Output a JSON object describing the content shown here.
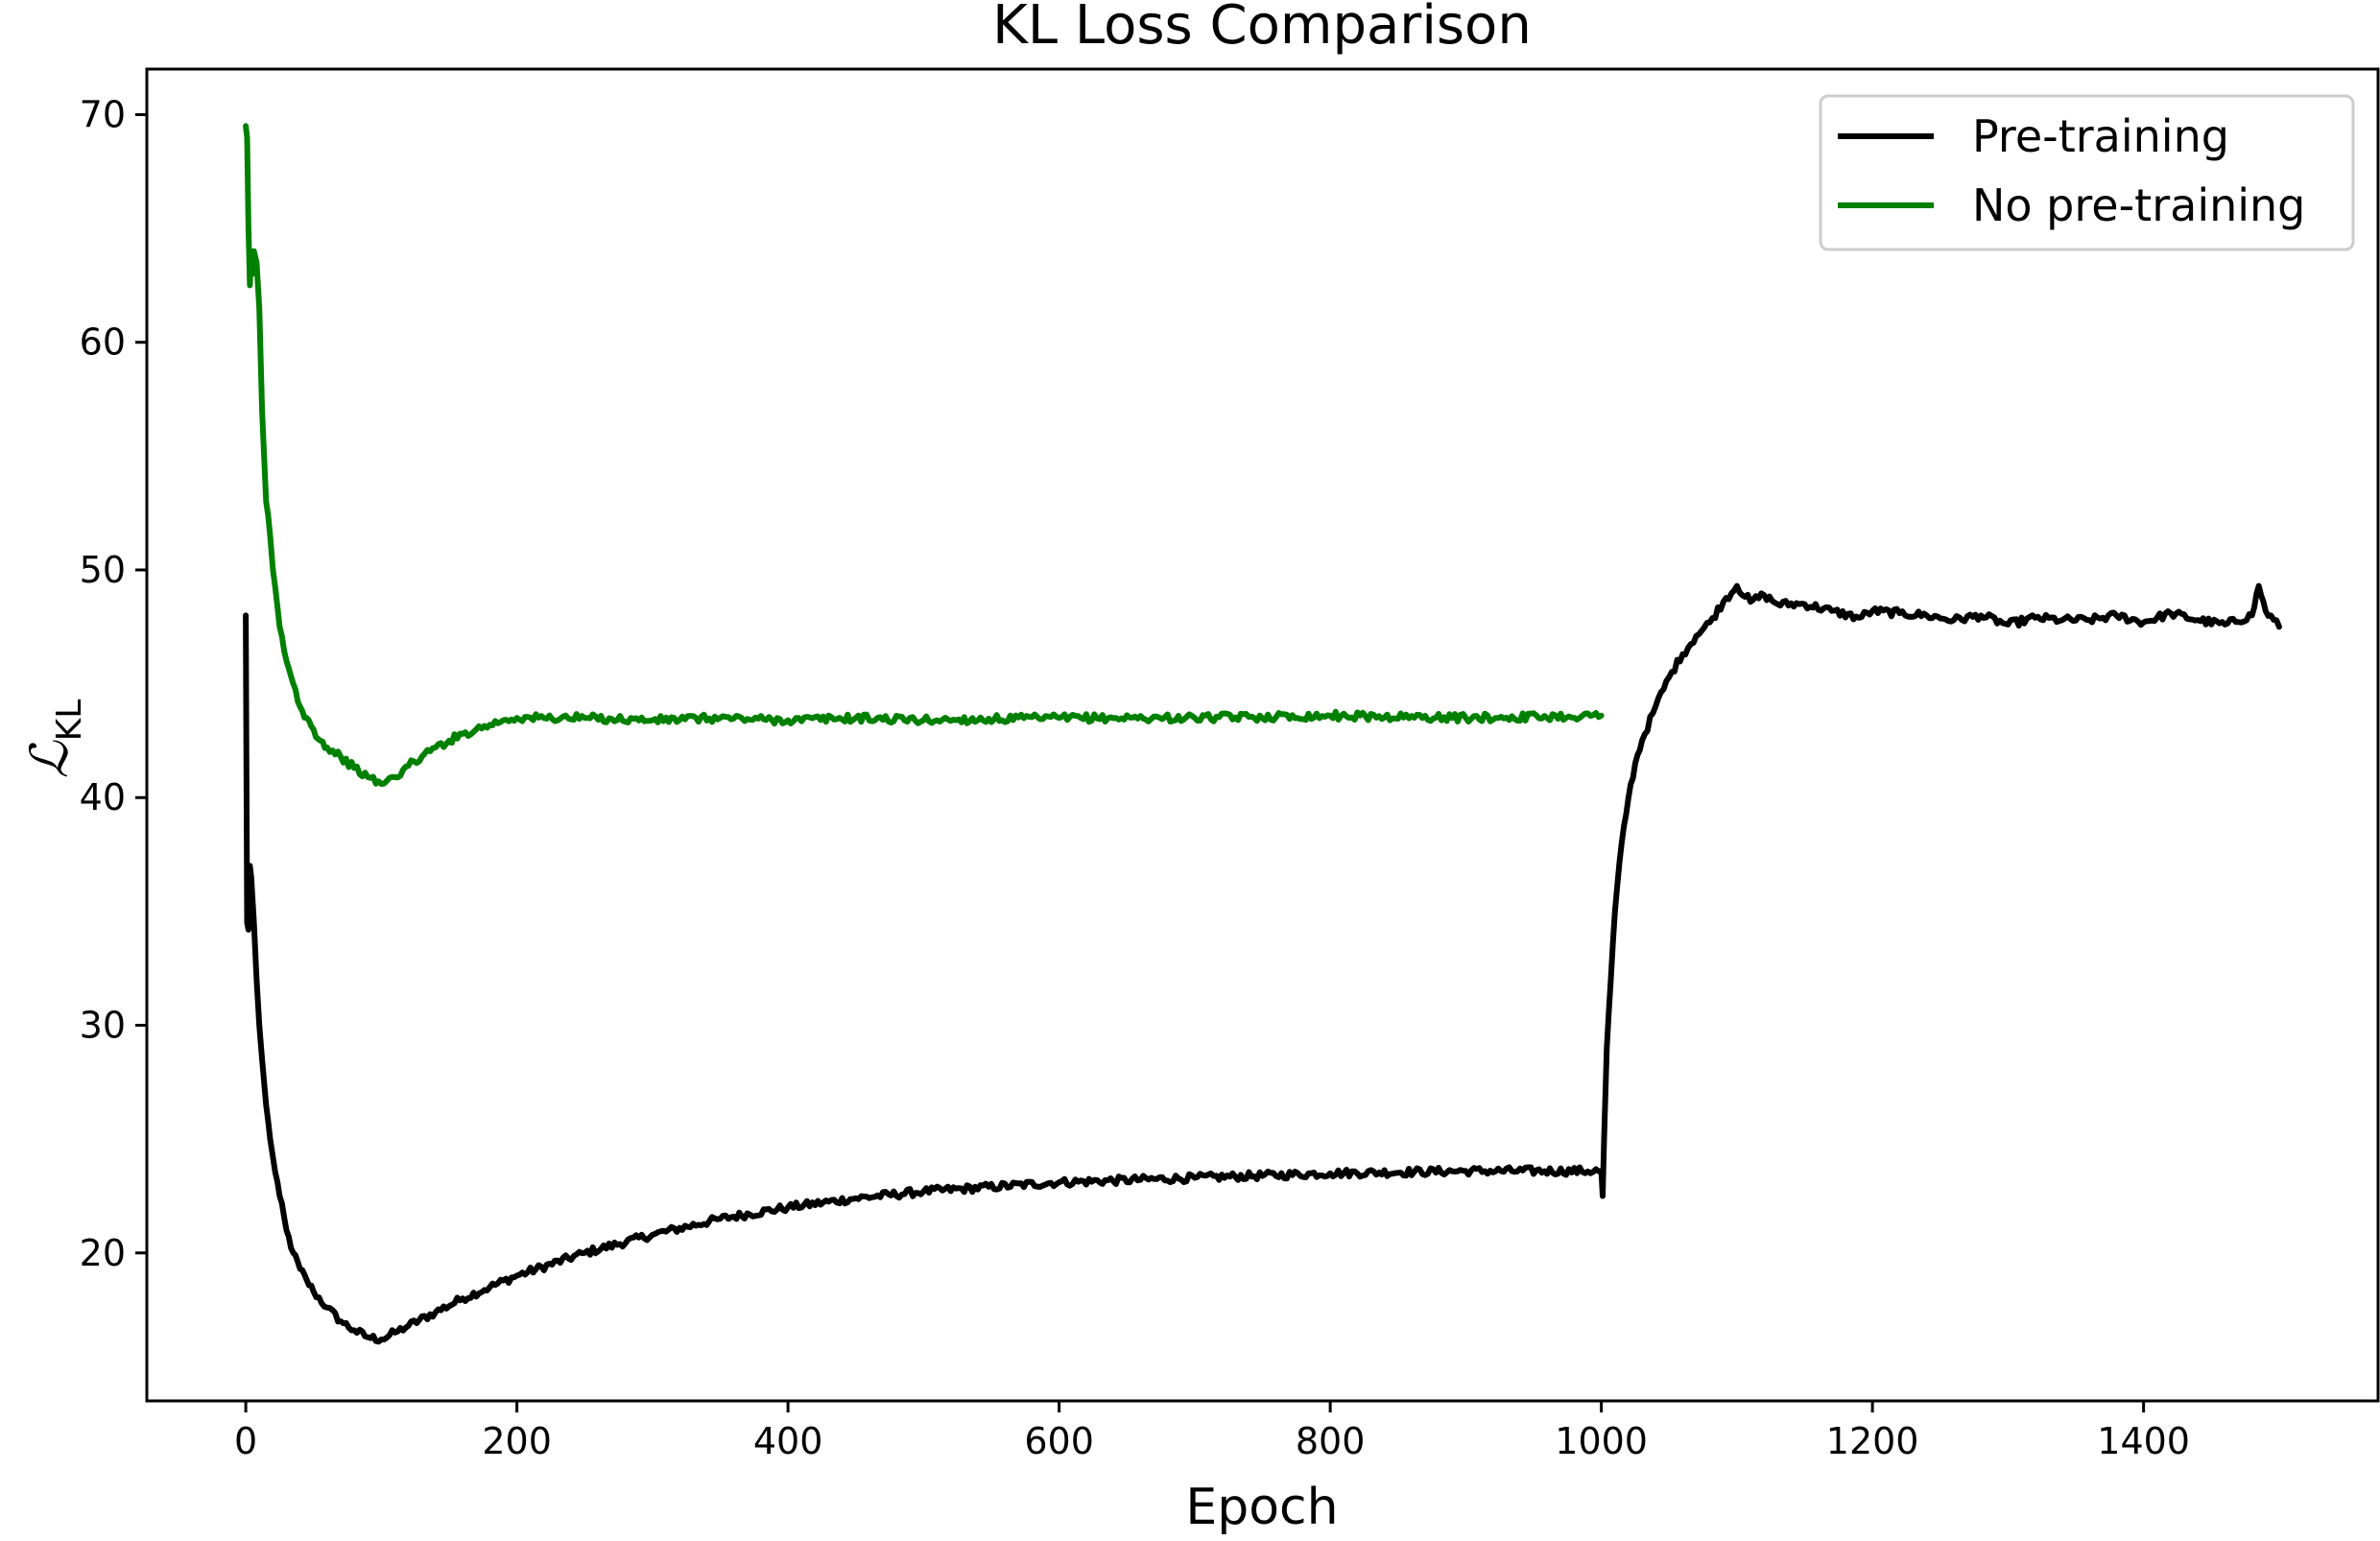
{
  "chart_data": {
    "type": "line",
    "title": "KL Loss Comparison",
    "xlabel": "Epoch",
    "ylabel": "ℒKL",
    "ylabel_parts": {
      "main": "ℒ",
      "sub": "KL"
    },
    "xlim": [
      -73,
      1573
    ],
    "ylim": [
      13.5,
      72
    ],
    "xticks": [
      0,
      200,
      400,
      600,
      800,
      1000,
      1200,
      1400
    ],
    "yticks": [
      20,
      30,
      40,
      50,
      60,
      70
    ],
    "grid": false,
    "legend_position": "top-right",
    "series": [
      {
        "name": "Pre-training",
        "color": "#000000",
        "x": [
          0,
          1,
          2,
          3,
          4,
          6,
          8,
          10,
          12,
          15,
          18,
          20,
          25,
          30,
          35,
          40,
          45,
          50,
          60,
          70,
          80,
          90,
          100,
          110,
          120,
          140,
          160,
          180,
          200,
          250,
          300,
          350,
          400,
          450,
          500,
          600,
          700,
          800,
          900,
          1000,
          1001,
          1002,
          1004,
          1007,
          1010,
          1015,
          1020,
          1025,
          1030,
          1040,
          1050,
          1060,
          1070,
          1080,
          1090,
          1100,
          1110,
          1120,
          1130,
          1150,
          1170,
          1190,
          1200,
          1220,
          1240,
          1260,
          1280,
          1300,
          1320,
          1340,
          1360,
          1380,
          1400,
          1420,
          1440,
          1460,
          1480,
          1485,
          1490,
          1500
        ],
        "y": [
          48,
          34.5,
          34.2,
          37.0,
          36.5,
          34.5,
          32.0,
          30.0,
          28.5,
          26.5,
          25.0,
          24.2,
          22.5,
          21.0,
          20.0,
          19.3,
          18.8,
          18.3,
          17.6,
          17.0,
          16.6,
          16.3,
          16.2,
          16.5,
          16.8,
          17.4,
          18.0,
          18.5,
          19.0,
          20.0,
          20.8,
          21.5,
          22.0,
          22.4,
          22.7,
          23.1,
          23.3,
          23.5,
          23.6,
          23.6,
          22.5,
          25.0,
          29.0,
          32.0,
          35.0,
          38.0,
          40.0,
          41.5,
          42.5,
          44.0,
          45.3,
          46.3,
          47.1,
          47.7,
          48.6,
          49.3,
          48.6,
          48.9,
          48.5,
          48.5,
          48.2,
          47.9,
          48.2,
          48.1,
          48.0,
          47.8,
          48.0,
          47.6,
          47.9,
          47.8,
          47.8,
          48.0,
          47.7,
          48.1,
          47.8,
          47.6,
          48.0,
          49.3,
          48.2,
          47.5
        ]
      },
      {
        "name": "No pre-training",
        "color": "#008000",
        "x": [
          0,
          1,
          2,
          3,
          4,
          5,
          6,
          8,
          10,
          12,
          15,
          18,
          20,
          25,
          30,
          35,
          40,
          45,
          50,
          55,
          60,
          70,
          80,
          90,
          100,
          110,
          120,
          130,
          140,
          150,
          160,
          170,
          180,
          190,
          200,
          250,
          300,
          350,
          400,
          450,
          500,
          600,
          700,
          800,
          900,
          1000
        ],
        "y": [
          69.5,
          69.0,
          65.0,
          62.5,
          64.0,
          63.0,
          64.0,
          63.5,
          61.5,
          57.0,
          53.0,
          51.5,
          50.0,
          47.5,
          46.0,
          45.0,
          44.0,
          43.5,
          43.0,
          42.5,
          42.2,
          41.8,
          41.3,
          40.9,
          40.6,
          40.9,
          41.4,
          41.8,
          42.2,
          42.5,
          42.8,
          43.0,
          43.2,
          43.4,
          43.5,
          43.5,
          43.4,
          43.5,
          43.4,
          43.5,
          43.4,
          43.5,
          43.5,
          43.6,
          43.5,
          43.6
        ]
      }
    ]
  }
}
